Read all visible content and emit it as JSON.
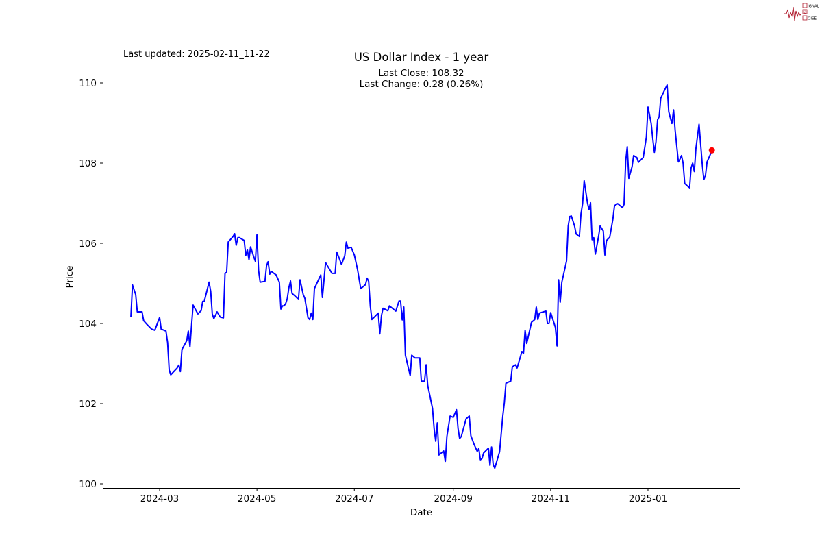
{
  "logo": {
    "text": "SIGNAL 2 NOISE",
    "color": "#b01c2e"
  },
  "last_updated": "Last updated: 2025-02-11_11-22",
  "annotations": {
    "last_close": "Last Close: 108.32",
    "last_change": "Last Change: 0.28 (0.26%)"
  },
  "chart_data": {
    "type": "line",
    "title": "US Dollar Index - 1 year",
    "xlabel": "Date",
    "ylabel": "Price",
    "ylim": [
      99.9,
      110.4
    ],
    "xlim": [
      "2024-01-26",
      "2025-02-27"
    ],
    "grid": false,
    "line_color": "#0000ff",
    "marker_color": "#ff0000",
    "yticks": [
      100,
      102,
      104,
      106,
      108,
      110
    ],
    "xticks": [
      "2024-03",
      "2024-05",
      "2024-07",
      "2024-09",
      "2024-11",
      "2025-01"
    ],
    "last_point": {
      "date": "2025-02-10",
      "value": 108.32
    },
    "series": [
      {
        "x": [
          "2024-02-12",
          "2024-02-13",
          "2024-02-15",
          "2024-02-16",
          "2024-02-19",
          "2024-02-20",
          "2024-02-22",
          "2024-02-25",
          "2024-02-27",
          "2024-03-01",
          "2024-03-02",
          "2024-03-05",
          "2024-03-06",
          "2024-03-07",
          "2024-03-08",
          "2024-03-12",
          "2024-03-13",
          "2024-03-14",
          "2024-03-15",
          "2024-03-18",
          "2024-03-19",
          "2024-03-20",
          "2024-03-22",
          "2024-03-25",
          "2024-03-27",
          "2024-03-28",
          "2024-03-29",
          "2024-04-01",
          "2024-04-02",
          "2024-04-03",
          "2024-04-04",
          "2024-04-06",
          "2024-04-08",
          "2024-04-10",
          "2024-04-11",
          "2024-04-12",
          "2024-04-13",
          "2024-04-16",
          "2024-04-17",
          "2024-04-18",
          "2024-04-19",
          "2024-04-20",
          "2024-04-23",
          "2024-04-24",
          "2024-04-25",
          "2024-04-26",
          "2024-04-27",
          "2024-04-29",
          "2024-04-30",
          "2024-05-01",
          "2024-05-02",
          "2024-05-03",
          "2024-05-06",
          "2024-05-07",
          "2024-05-08",
          "2024-05-09",
          "2024-05-10",
          "2024-05-13",
          "2024-05-15",
          "2024-05-16",
          "2024-05-17",
          "2024-05-18",
          "2024-05-19",
          "2024-05-20",
          "2024-05-21",
          "2024-05-22",
          "2024-05-23",
          "2024-05-25",
          "2024-05-27",
          "2024-05-28",
          "2024-05-30",
          "2024-05-31",
          "2024-06-02",
          "2024-06-03",
          "2024-06-04",
          "2024-06-05",
          "2024-06-06",
          "2024-06-10",
          "2024-06-11",
          "2024-06-13",
          "2024-06-17",
          "2024-06-19",
          "2024-06-20",
          "2024-06-21",
          "2024-06-23",
          "2024-06-25",
          "2024-06-26",
          "2024-06-27",
          "2024-06-29",
          "2024-07-01",
          "2024-07-03",
          "2024-07-05",
          "2024-07-08",
          "2024-07-09",
          "2024-07-10",
          "2024-07-11",
          "2024-07-12",
          "2024-07-16",
          "2024-07-17",
          "2024-07-18",
          "2024-07-19",
          "2024-07-22",
          "2024-07-23",
          "2024-07-27",
          "2024-07-29",
          "2024-07-30",
          "2024-07-31",
          "2024-08-01",
          "2024-08-02",
          "2024-08-05",
          "2024-08-06",
          "2024-08-08",
          "2024-08-09",
          "2024-08-11",
          "2024-08-12",
          "2024-08-14",
          "2024-08-15",
          "2024-08-16",
          "2024-08-19",
          "2024-08-20",
          "2024-08-21",
          "2024-08-22",
          "2024-08-23",
          "2024-08-26",
          "2024-08-27",
          "2024-08-28",
          "2024-08-30",
          "2024-09-01",
          "2024-09-03",
          "2024-09-04",
          "2024-09-05",
          "2024-09-06",
          "2024-09-09",
          "2024-09-11",
          "2024-09-12",
          "2024-09-14",
          "2024-09-16",
          "2024-09-17",
          "2024-09-18",
          "2024-09-19",
          "2024-09-20",
          "2024-09-23",
          "2024-09-24",
          "2024-09-25",
          "2024-09-26",
          "2024-09-27",
          "2024-09-30",
          "2024-10-02",
          "2024-10-03",
          "2024-10-04",
          "2024-10-07",
          "2024-10-08",
          "2024-10-10",
          "2024-10-11",
          "2024-10-14",
          "2024-10-15",
          "2024-10-16",
          "2024-10-17",
          "2024-10-20",
          "2024-10-22",
          "2024-10-23",
          "2024-10-24",
          "2024-10-25",
          "2024-10-29",
          "2024-10-30",
          "2024-10-31",
          "2024-11-01",
          "2024-11-04",
          "2024-11-05",
          "2024-11-06",
          "2024-11-07",
          "2024-11-08",
          "2024-11-11",
          "2024-11-12",
          "2024-11-13",
          "2024-11-14",
          "2024-11-16",
          "2024-11-17",
          "2024-11-19",
          "2024-11-20",
          "2024-11-21",
          "2024-11-22",
          "2024-11-24",
          "2024-11-25",
          "2024-11-26",
          "2024-11-27",
          "2024-11-28",
          "2024-11-29",
          "2024-12-01",
          "2024-12-02",
          "2024-12-04",
          "2024-12-05",
          "2024-12-06",
          "2024-12-08",
          "2024-12-10",
          "2024-12-11",
          "2024-12-13",
          "2024-12-16",
          "2024-12-17",
          "2024-12-18",
          "2024-12-19",
          "2024-12-20",
          "2024-12-22",
          "2024-12-23",
          "2024-12-25",
          "2024-12-26",
          "2024-12-29",
          "2024-12-31",
          "2025-01-01",
          "2025-01-03",
          "2025-01-04",
          "2025-01-05",
          "2025-01-06",
          "2025-01-07",
          "2025-01-08",
          "2025-01-09",
          "2025-01-11",
          "2025-01-13",
          "2025-01-14",
          "2025-01-15",
          "2025-01-16",
          "2025-01-17",
          "2025-01-18",
          "2025-01-20",
          "2025-01-21",
          "2025-01-22",
          "2025-01-23",
          "2025-01-24",
          "2025-01-26",
          "2025-01-27",
          "2025-01-28",
          "2025-01-29",
          "2025-01-30",
          "2025-01-31",
          "2025-02-02",
          "2025-02-04",
          "2025-02-05",
          "2025-02-06",
          "2025-02-07",
          "2025-02-09",
          "2025-02-10"
        ],
        "values": [
          104.17,
          104.96,
          104.72,
          104.29,
          104.29,
          104.07,
          103.98,
          103.86,
          103.83,
          104.15,
          103.86,
          103.81,
          103.52,
          102.84,
          102.72,
          102.89,
          102.96,
          102.8,
          103.35,
          103.57,
          103.81,
          103.42,
          104.46,
          104.24,
          104.32,
          104.55,
          104.55,
          105.03,
          104.8,
          104.24,
          104.12,
          104.29,
          104.16,
          104.14,
          105.25,
          105.28,
          106.03,
          106.17,
          106.24,
          105.95,
          106.14,
          106.14,
          106.07,
          105.7,
          105.84,
          105.59,
          105.91,
          105.66,
          105.55,
          106.21,
          105.32,
          105.03,
          105.05,
          105.44,
          105.54,
          105.23,
          105.3,
          105.21,
          105.03,
          104.36,
          104.44,
          104.44,
          104.5,
          104.62,
          104.89,
          105.06,
          104.75,
          104.68,
          104.6,
          105.09,
          104.72,
          104.63,
          104.14,
          104.1,
          104.26,
          104.1,
          104.87,
          105.21,
          104.65,
          105.52,
          105.25,
          105.25,
          105.78,
          105.68,
          105.47,
          105.69,
          106.03,
          105.88,
          105.9,
          105.71,
          105.35,
          104.87,
          104.97,
          105.13,
          105.05,
          104.43,
          104.1,
          104.26,
          103.74,
          104.2,
          104.38,
          104.32,
          104.44,
          104.31,
          104.56,
          104.56,
          104.09,
          104.41,
          103.21,
          102.7,
          103.21,
          103.14,
          103.14,
          103.14,
          102.56,
          102.56,
          102.97,
          102.46,
          101.88,
          101.37,
          101.06,
          101.52,
          100.72,
          100.82,
          100.56,
          101.18,
          101.69,
          101.66,
          101.85,
          101.38,
          101.13,
          101.18,
          101.62,
          101.69,
          101.2,
          100.99,
          100.81,
          100.88,
          100.6,
          100.63,
          100.77,
          100.89,
          100.46,
          100.92,
          100.48,
          100.39,
          100.8,
          101.69,
          102.03,
          102.51,
          102.56,
          102.92,
          102.97,
          102.89,
          103.3,
          103.26,
          103.83,
          103.5,
          104.03,
          104.1,
          104.41,
          104.1,
          104.26,
          104.31,
          104.0,
          104.0,
          104.27,
          103.9,
          103.44,
          105.09,
          104.53,
          105.03,
          105.56,
          106.43,
          106.67,
          106.68,
          106.43,
          106.23,
          106.17,
          106.73,
          106.99,
          107.56,
          107.03,
          106.84,
          107.01,
          106.09,
          106.14,
          105.73,
          106.17,
          106.43,
          106.31,
          105.71,
          106.07,
          106.15,
          106.6,
          106.94,
          106.99,
          106.89,
          106.97,
          108.05,
          108.41,
          107.62,
          107.91,
          108.19,
          108.14,
          108.02,
          108.14,
          108.65,
          109.4,
          108.99,
          108.6,
          108.27,
          108.53,
          109.08,
          109.16,
          109.62,
          109.79,
          109.95,
          109.28,
          109.13,
          108.99,
          109.33,
          108.82,
          108.03,
          108.1,
          108.19,
          108.0,
          107.49,
          107.42,
          107.37,
          107.88,
          108.0,
          107.79,
          108.36,
          108.97,
          107.97,
          107.59,
          107.69,
          108.03,
          108.21,
          108.32
        ]
      }
    ]
  }
}
